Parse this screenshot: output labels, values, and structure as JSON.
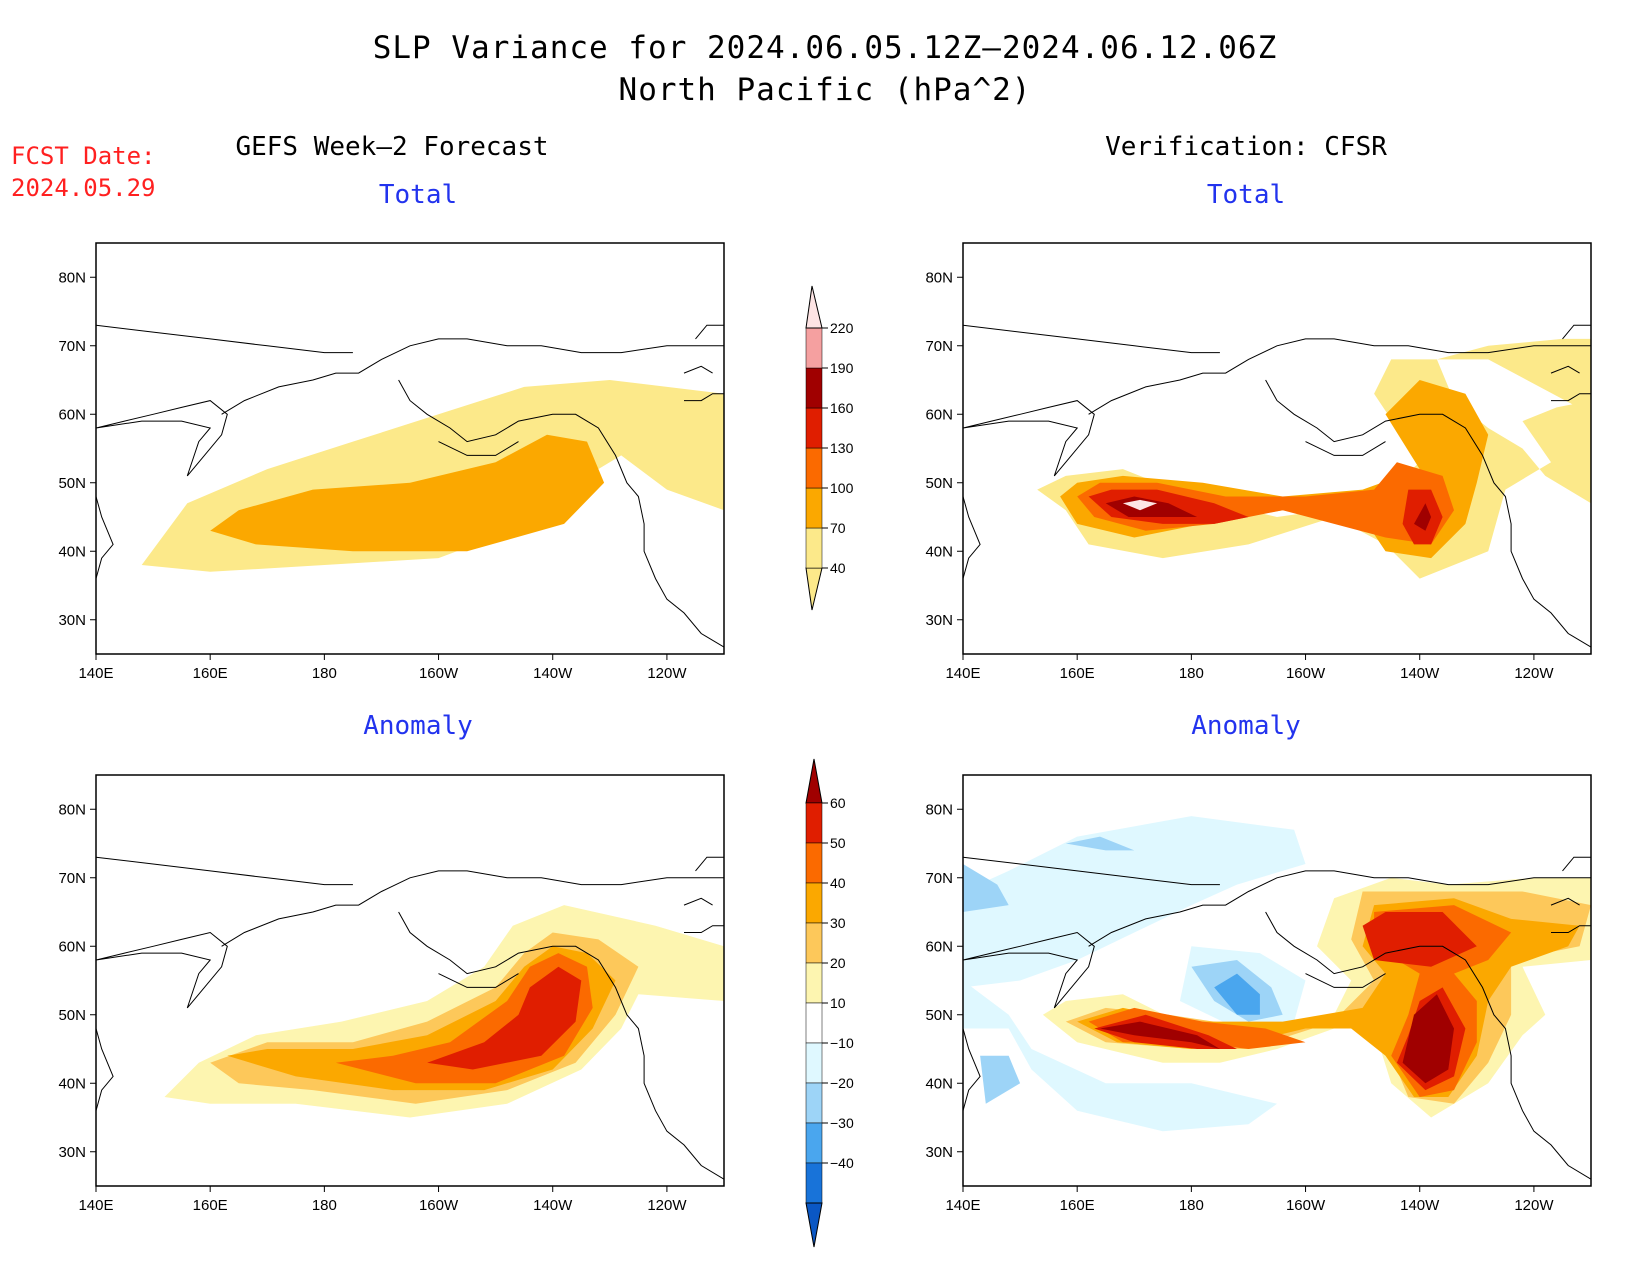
{
  "title": {
    "line1": "SLP Variance for 2024.06.05.12Z–2024.06.12.06Z",
    "line2": "North Pacific (hPa^2)"
  },
  "fcst_date": {
    "label": "FCST Date:",
    "value": "2024.05.29"
  },
  "columns": {
    "left": "GEFS Week–2 Forecast",
    "right": "Verification: CFSR"
  },
  "panels": [
    {
      "id": "gefs-total",
      "subtitle": "Total"
    },
    {
      "id": "cfsr-total",
      "subtitle": "Total"
    },
    {
      "id": "gefs-anomaly",
      "subtitle": "Anomaly"
    },
    {
      "id": "cfsr-anomaly",
      "subtitle": "Anomaly"
    }
  ],
  "axes": {
    "lon_ticks": [
      "140E",
      "160E",
      "180",
      "160W",
      "140W",
      "120W"
    ],
    "lat_ticks": [
      "80N",
      "70N",
      "60N",
      "50N",
      "40N",
      "30N"
    ],
    "lon_values": [
      140,
      160,
      180,
      200,
      220,
      240
    ],
    "lat_values": [
      80,
      70,
      60,
      50,
      40,
      30
    ]
  },
  "colorbars": {
    "total": {
      "levels": [
        "40",
        "70",
        "100",
        "130",
        "160",
        "190",
        "220"
      ],
      "colors": [
        "#fce98a",
        "#fba800",
        "#fb6a00",
        "#e01e00",
        "#a00000",
        "#f5a0a0",
        "#fde4e4"
      ]
    },
    "anomaly": {
      "levels": [
        "60",
        "50",
        "40",
        "30",
        "20",
        "10",
        "−10",
        "−20",
        "−30",
        "−40"
      ],
      "colors": [
        "#a00000",
        "#e01e00",
        "#fb6a00",
        "#fba800",
        "#fdc85a",
        "#fdf5b0",
        "#ffffff",
        "#dff8ff",
        "#9dd4f7",
        "#4aa6ee",
        "#1873d9",
        "#0a57c4"
      ]
    }
  }
}
